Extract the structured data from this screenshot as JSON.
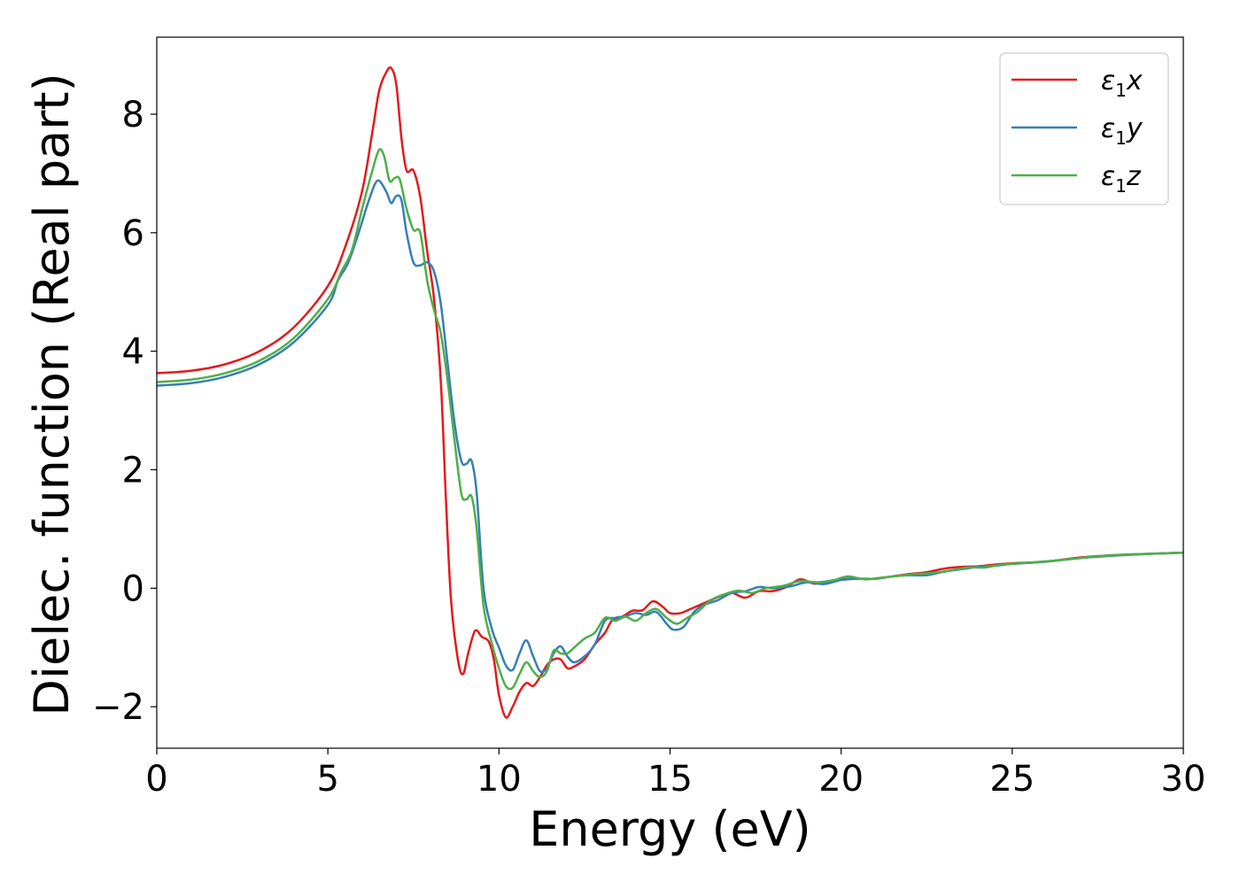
{
  "chart_data": {
    "type": "line",
    "title": "",
    "xlabel": "Energy (eV)",
    "ylabel": "Dielec. function (Real part)",
    "xlim": [
      0,
      30
    ],
    "ylim": [
      -2.7,
      9.3
    ],
    "x_ticks": [
      "0",
      "5",
      "10",
      "15",
      "20",
      "25",
      "30"
    ],
    "y_ticks": [
      "−2",
      "0",
      "2",
      "4",
      "6",
      "8"
    ],
    "grid": false,
    "legend_position": "top-right",
    "series": [
      {
        "name": "ε1x",
        "legend_symbol": "ε",
        "legend_sub": "1",
        "legend_suffix": "x",
        "color": "#e41a1c",
        "points": [
          [
            0,
            3.63
          ],
          [
            1,
            3.67
          ],
          [
            2,
            3.78
          ],
          [
            3,
            4.0
          ],
          [
            4,
            4.4
          ],
          [
            5,
            5.1
          ],
          [
            5.5,
            5.75
          ],
          [
            6,
            6.7
          ],
          [
            6.3,
            7.7
          ],
          [
            6.5,
            8.4
          ],
          [
            6.7,
            8.7
          ],
          [
            6.85,
            8.78
          ],
          [
            7.0,
            8.5
          ],
          [
            7.15,
            7.6
          ],
          [
            7.3,
            7.05
          ],
          [
            7.5,
            7.05
          ],
          [
            7.7,
            6.6
          ],
          [
            7.9,
            5.7
          ],
          [
            8.1,
            4.9
          ],
          [
            8.3,
            3.5
          ],
          [
            8.45,
            1.5
          ],
          [
            8.6,
            -0.2
          ],
          [
            8.8,
            -1.2
          ],
          [
            8.95,
            -1.45
          ],
          [
            9.1,
            -1.1
          ],
          [
            9.3,
            -0.72
          ],
          [
            9.5,
            -0.82
          ],
          [
            9.7,
            -0.9
          ],
          [
            9.85,
            -1.2
          ],
          [
            10.0,
            -1.8
          ],
          [
            10.2,
            -2.18
          ],
          [
            10.4,
            -2.0
          ],
          [
            10.6,
            -1.75
          ],
          [
            10.8,
            -1.6
          ],
          [
            11.0,
            -1.65
          ],
          [
            11.2,
            -1.5
          ],
          [
            11.4,
            -1.3
          ],
          [
            11.6,
            -1.2
          ],
          [
            11.8,
            -1.2
          ],
          [
            12.0,
            -1.35
          ],
          [
            12.2,
            -1.32
          ],
          [
            12.5,
            -1.2
          ],
          [
            12.8,
            -0.95
          ],
          [
            13.1,
            -0.75
          ],
          [
            13.3,
            -0.55
          ],
          [
            13.6,
            -0.48
          ],
          [
            13.9,
            -0.38
          ],
          [
            14.2,
            -0.37
          ],
          [
            14.5,
            -0.22
          ],
          [
            14.8,
            -0.32
          ],
          [
            15.0,
            -0.42
          ],
          [
            15.3,
            -0.42
          ],
          [
            15.6,
            -0.35
          ],
          [
            16.0,
            -0.25
          ],
          [
            16.4,
            -0.15
          ],
          [
            16.8,
            -0.08
          ],
          [
            17.2,
            -0.16
          ],
          [
            17.6,
            -0.05
          ],
          [
            18.0,
            -0.05
          ],
          [
            18.4,
            0.02
          ],
          [
            18.8,
            0.15
          ],
          [
            19.2,
            0.08
          ],
          [
            19.6,
            0.1
          ],
          [
            20.0,
            0.15
          ],
          [
            20.5,
            0.16
          ],
          [
            21.0,
            0.16
          ],
          [
            21.5,
            0.2
          ],
          [
            22.0,
            0.24
          ],
          [
            22.5,
            0.27
          ],
          [
            23.0,
            0.33
          ],
          [
            23.5,
            0.36
          ],
          [
            24.0,
            0.37
          ],
          [
            24.5,
            0.4
          ],
          [
            25.0,
            0.42
          ],
          [
            26.0,
            0.45
          ],
          [
            27.0,
            0.52
          ],
          [
            28.0,
            0.56
          ],
          [
            29.0,
            0.58
          ],
          [
            30.0,
            0.6
          ]
        ]
      },
      {
        "name": "ε1y",
        "legend_symbol": "ε",
        "legend_sub": "1",
        "legend_suffix": "y",
        "color": "#377eb8",
        "points": [
          [
            0,
            3.42
          ],
          [
            1,
            3.46
          ],
          [
            2,
            3.57
          ],
          [
            3,
            3.78
          ],
          [
            4,
            4.15
          ],
          [
            5,
            4.78
          ],
          [
            5.3,
            5.2
          ],
          [
            5.6,
            5.5
          ],
          [
            5.9,
            6.0
          ],
          [
            6.2,
            6.55
          ],
          [
            6.45,
            6.88
          ],
          [
            6.7,
            6.7
          ],
          [
            6.85,
            6.5
          ],
          [
            7.0,
            6.62
          ],
          [
            7.15,
            6.55
          ],
          [
            7.3,
            6.0
          ],
          [
            7.5,
            5.5
          ],
          [
            7.7,
            5.45
          ],
          [
            7.9,
            5.5
          ],
          [
            8.1,
            5.35
          ],
          [
            8.3,
            4.8
          ],
          [
            8.5,
            3.8
          ],
          [
            8.7,
            2.8
          ],
          [
            8.9,
            2.15
          ],
          [
            9.05,
            2.1
          ],
          [
            9.2,
            2.15
          ],
          [
            9.35,
            1.6
          ],
          [
            9.55,
            0.0
          ],
          [
            9.8,
            -0.7
          ],
          [
            10.0,
            -1.0
          ],
          [
            10.2,
            -1.3
          ],
          [
            10.4,
            -1.38
          ],
          [
            10.6,
            -1.1
          ],
          [
            10.8,
            -0.88
          ],
          [
            11.0,
            -1.15
          ],
          [
            11.2,
            -1.4
          ],
          [
            11.4,
            -1.35
          ],
          [
            11.6,
            -1.1
          ],
          [
            11.8,
            -0.98
          ],
          [
            12.0,
            -1.15
          ],
          [
            12.2,
            -1.25
          ],
          [
            12.5,
            -1.15
          ],
          [
            12.8,
            -0.95
          ],
          [
            13.1,
            -0.55
          ],
          [
            13.4,
            -0.5
          ],
          [
            13.7,
            -0.47
          ],
          [
            14.0,
            -0.42
          ],
          [
            14.3,
            -0.45
          ],
          [
            14.6,
            -0.4
          ],
          [
            14.9,
            -0.6
          ],
          [
            15.1,
            -0.7
          ],
          [
            15.4,
            -0.65
          ],
          [
            15.7,
            -0.4
          ],
          [
            16.0,
            -0.28
          ],
          [
            16.4,
            -0.2
          ],
          [
            16.8,
            -0.08
          ],
          [
            17.2,
            -0.05
          ],
          [
            17.6,
            0.02
          ],
          [
            18.0,
            0.0
          ],
          [
            18.5,
            0.03
          ],
          [
            19.0,
            0.1
          ],
          [
            19.5,
            0.07
          ],
          [
            20.0,
            0.14
          ],
          [
            20.5,
            0.16
          ],
          [
            21.0,
            0.16
          ],
          [
            21.5,
            0.2
          ],
          [
            22.0,
            0.22
          ],
          [
            22.5,
            0.22
          ],
          [
            23.0,
            0.28
          ],
          [
            23.5,
            0.32
          ],
          [
            24.0,
            0.36
          ],
          [
            24.5,
            0.38
          ],
          [
            25.0,
            0.41
          ],
          [
            26.0,
            0.45
          ],
          [
            27.0,
            0.51
          ],
          [
            28.0,
            0.55
          ],
          [
            29.0,
            0.58
          ],
          [
            30.0,
            0.6
          ]
        ]
      },
      {
        "name": "ε1z",
        "legend_symbol": "ε",
        "legend_sub": "1",
        "legend_suffix": "z",
        "color": "#4daf4a",
        "points": [
          [
            0,
            3.48
          ],
          [
            1,
            3.52
          ],
          [
            2,
            3.63
          ],
          [
            3,
            3.84
          ],
          [
            4,
            4.22
          ],
          [
            5,
            4.88
          ],
          [
            5.4,
            5.35
          ],
          [
            5.7,
            5.7
          ],
          [
            6.0,
            6.4
          ],
          [
            6.3,
            7.05
          ],
          [
            6.5,
            7.4
          ],
          [
            6.65,
            7.28
          ],
          [
            6.8,
            6.88
          ],
          [
            6.95,
            6.92
          ],
          [
            7.1,
            6.9
          ],
          [
            7.3,
            6.4
          ],
          [
            7.5,
            6.05
          ],
          [
            7.7,
            6.0
          ],
          [
            7.9,
            5.2
          ],
          [
            8.1,
            4.7
          ],
          [
            8.3,
            4.3
          ],
          [
            8.5,
            3.5
          ],
          [
            8.7,
            2.5
          ],
          [
            8.9,
            1.6
          ],
          [
            9.05,
            1.5
          ],
          [
            9.2,
            1.55
          ],
          [
            9.35,
            1.0
          ],
          [
            9.55,
            -0.3
          ],
          [
            9.8,
            -0.95
          ],
          [
            10.0,
            -1.35
          ],
          [
            10.2,
            -1.65
          ],
          [
            10.4,
            -1.68
          ],
          [
            10.6,
            -1.45
          ],
          [
            10.8,
            -1.25
          ],
          [
            11.0,
            -1.4
          ],
          [
            11.2,
            -1.5
          ],
          [
            11.4,
            -1.4
          ],
          [
            11.6,
            -1.05
          ],
          [
            11.8,
            -1.1
          ],
          [
            12.0,
            -1.1
          ],
          [
            12.2,
            -1.0
          ],
          [
            12.5,
            -0.85
          ],
          [
            12.8,
            -0.75
          ],
          [
            13.1,
            -0.5
          ],
          [
            13.4,
            -0.55
          ],
          [
            13.7,
            -0.48
          ],
          [
            14.0,
            -0.55
          ],
          [
            14.3,
            -0.42
          ],
          [
            14.6,
            -0.35
          ],
          [
            14.9,
            -0.5
          ],
          [
            15.2,
            -0.6
          ],
          [
            15.5,
            -0.5
          ],
          [
            15.8,
            -0.4
          ],
          [
            16.2,
            -0.2
          ],
          [
            16.6,
            -0.1
          ],
          [
            17.0,
            -0.04
          ],
          [
            17.4,
            -0.08
          ],
          [
            17.8,
            0.0
          ],
          [
            18.3,
            0.04
          ],
          [
            18.8,
            0.12
          ],
          [
            19.3,
            0.1
          ],
          [
            19.8,
            0.14
          ],
          [
            20.2,
            0.2
          ],
          [
            20.7,
            0.15
          ],
          [
            21.2,
            0.18
          ],
          [
            21.7,
            0.21
          ],
          [
            22.2,
            0.24
          ],
          [
            22.7,
            0.26
          ],
          [
            23.2,
            0.3
          ],
          [
            23.7,
            0.35
          ],
          [
            24.2,
            0.35
          ],
          [
            24.7,
            0.4
          ],
          [
            25.5,
            0.43
          ],
          [
            26.5,
            0.48
          ],
          [
            27.5,
            0.54
          ],
          [
            28.5,
            0.57
          ],
          [
            29.5,
            0.59
          ],
          [
            30.0,
            0.6
          ]
        ]
      }
    ]
  }
}
